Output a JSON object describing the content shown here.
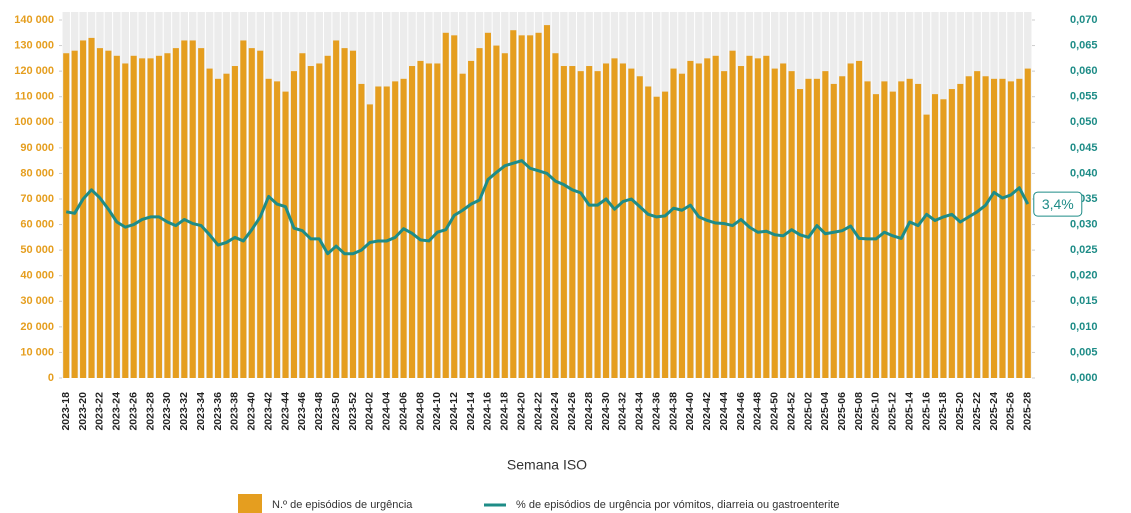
{
  "chart_data": {
    "type": "bar",
    "x_label": "Semana ISO",
    "categories": [
      "2023-18",
      null,
      "2023-20",
      null,
      "2023-22",
      null,
      "2023-24",
      null,
      "2023-26",
      null,
      "2023-28",
      null,
      "2023-30",
      null,
      "2023-32",
      null,
      "2023-34",
      null,
      "2023-36",
      null,
      "2023-38",
      null,
      "2023-40",
      null,
      "2023-42",
      null,
      "2023-44",
      null,
      "2023-46",
      null,
      "2023-48",
      null,
      "2023-50",
      null,
      "2023-52",
      null,
      "2024-02",
      null,
      "2024-04",
      null,
      "2024-06",
      null,
      "2024-08",
      null,
      "2024-10",
      null,
      "2024-12",
      null,
      "2024-14",
      null,
      "2024-16",
      null,
      "2024-18",
      null,
      "2024-20",
      null,
      "2024-22",
      null,
      "2024-24",
      null,
      "2024-26",
      null,
      "2024-28",
      null,
      "2024-30",
      null,
      "2024-32",
      null,
      "2024-34",
      null,
      "2024-36",
      null,
      "2024-38",
      null,
      "2024-40",
      null,
      "2024-42",
      null,
      "2024-44",
      null,
      "2024-46",
      null,
      "2024-48",
      null,
      "2024-50",
      null,
      "2024-52",
      null,
      "2025-02",
      null,
      "2025-04",
      null,
      "2025-06",
      null,
      "2025-08",
      null,
      "2025-10",
      null,
      "2025-12",
      null,
      "2025-14",
      null,
      "2025-16",
      null,
      "2025-18",
      null,
      "2025-20",
      null,
      "2025-22",
      null,
      "2025-24",
      null,
      "2025-26",
      null,
      "2025-28"
    ],
    "series": [
      {
        "name": "N.º de episódios de urgência",
        "color": "#E59E1F",
        "values": [
          127000,
          128000,
          132000,
          133000,
          129000,
          128000,
          126000,
          123000,
          126000,
          125000,
          125000,
          126000,
          127000,
          129000,
          132000,
          132000,
          129000,
          121000,
          117000,
          119000,
          122000,
          132000,
          129000,
          128000,
          117000,
          116000,
          112000,
          120000,
          127000,
          122000,
          123000,
          126000,
          132000,
          129000,
          128000,
          115000,
          107000,
          114000,
          114000,
          116000,
          117000,
          122000,
          124000,
          123000,
          123000,
          135000,
          134000,
          119000,
          124000,
          129000,
          135000,
          130000,
          127000,
          136000,
          134000,
          134000,
          135000,
          138000,
          127000,
          122000,
          122000,
          120000,
          122000,
          120000,
          123000,
          125000,
          123000,
          121000,
          118000,
          114000,
          110000,
          112000,
          121000,
          119000,
          124000,
          123000,
          125000,
          126000,
          120000,
          128000,
          122000,
          126000,
          125000,
          126000,
          121000,
          123000,
          120000,
          113000,
          117000,
          117000,
          120000,
          115000,
          118000,
          123000,
          124000,
          116000,
          111000,
          116000,
          112000,
          116000,
          117000,
          115000,
          103000,
          111000,
          109000,
          113000,
          115000,
          118000,
          120000,
          118000,
          117000,
          117000,
          116000,
          117000,
          121000
        ]
      },
      {
        "name": "% de episódios de urgência por vómitos, diarreia ou gastroenterite",
        "color": "#1E8C87",
        "type": "line",
        "axis": "y2",
        "values": [
          0.0325,
          0.0322,
          0.035,
          0.0368,
          0.0352,
          0.033,
          0.0305,
          0.0295,
          0.03,
          0.031,
          0.0315,
          0.0315,
          0.0305,
          0.0298,
          0.031,
          0.0302,
          0.0298,
          0.028,
          0.026,
          0.0265,
          0.0275,
          0.0268,
          0.029,
          0.0315,
          0.0355,
          0.034,
          0.0335,
          0.0293,
          0.0288,
          0.0272,
          0.0272,
          0.0243,
          0.0258,
          0.0243,
          0.0243,
          0.025,
          0.0265,
          0.0268,
          0.0268,
          0.0275,
          0.0292,
          0.0283,
          0.027,
          0.0268,
          0.0285,
          0.029,
          0.0318,
          0.0328,
          0.034,
          0.0348,
          0.0388,
          0.0402,
          0.0415,
          0.042,
          0.0425,
          0.041,
          0.0405,
          0.04,
          0.0385,
          0.0378,
          0.0368,
          0.0362,
          0.0338,
          0.0338,
          0.035,
          0.033,
          0.0345,
          0.035,
          0.0335,
          0.032,
          0.0315,
          0.0317,
          0.0332,
          0.0328,
          0.0338,
          0.0315,
          0.0308,
          0.0303,
          0.0302,
          0.0298,
          0.031,
          0.0295,
          0.0285,
          0.0287,
          0.028,
          0.0278,
          0.029,
          0.028,
          0.0275,
          0.0298,
          0.0282,
          0.0285,
          0.0288,
          0.0297,
          0.0273,
          0.0272,
          0.0272,
          0.0285,
          0.0278,
          0.0273,
          0.0305,
          0.0298,
          0.032,
          0.0308,
          0.0315,
          0.032,
          0.0305,
          0.0315,
          0.0325,
          0.0338,
          0.0363,
          0.0352,
          0.0358,
          0.0372,
          0.034
        ],
        "value_labels": [
          null,
          null,
          null,
          null,
          null,
          null,
          null,
          null,
          null,
          null,
          null,
          null,
          null,
          null,
          null,
          null,
          null,
          null,
          null,
          null,
          null,
          null,
          null,
          null,
          null,
          null,
          null,
          null,
          null,
          null,
          null,
          null,
          null,
          null,
          null,
          null,
          null,
          null,
          null,
          null,
          null,
          null,
          null,
          null,
          null,
          null,
          null,
          null,
          null,
          null,
          null,
          null,
          null,
          null,
          null,
          null,
          null,
          null,
          null,
          null,
          null,
          null,
          null,
          null,
          null,
          null,
          null,
          null,
          null,
          null,
          null,
          null,
          null,
          null,
          null,
          null,
          null,
          null,
          null,
          null,
          null,
          null,
          null,
          null,
          null,
          null,
          null,
          null,
          null,
          null,
          null,
          null,
          null,
          null,
          null,
          null,
          null,
          null,
          null,
          null,
          null,
          null,
          null,
          null,
          null,
          null,
          null,
          null,
          null,
          null,
          null,
          null,
          null,
          null,
          "3,4%"
        ]
      }
    ],
    "ylim": [
      0,
      140000
    ],
    "yticks": [
      0,
      {
        "value": 10000,
        "label": "10 000"
      },
      {
        "value": 20000,
        "label": "20 000"
      },
      {
        "value": 30000,
        "label": "30 000"
      },
      {
        "value": 40000,
        "label": "40 000"
      },
      {
        "value": 50000,
        "label": "50 000"
      },
      {
        "value": 60000,
        "label": "60 000"
      },
      {
        "value": 70000,
        "label": "70 000"
      },
      {
        "value": 80000,
        "label": "80 000"
      },
      {
        "value": 90000,
        "label": "90 000"
      },
      {
        "value": 100000,
        "label": "100 000"
      },
      {
        "value": 110000,
        "label": "110 000"
      },
      {
        "value": 120000,
        "label": "120 000"
      },
      {
        "value": 130000,
        "label": "130 000"
      },
      {
        "value": 140000,
        "label": "140 000"
      }
    ],
    "y2lim": [
      0,
      0.07
    ],
    "y2ticks": [
      {
        "value": 0,
        "label": "0,000"
      },
      {
        "value": 0.005,
        "label": "0,005"
      },
      {
        "value": 0.01,
        "label": "0,010"
      },
      {
        "value": 0.015,
        "label": "0,015"
      },
      {
        "value": 0.02,
        "label": "0,020"
      },
      {
        "value": 0.025,
        "label": "0,025"
      },
      {
        "value": 0.03,
        "label": "0,030"
      },
      {
        "value": 0.035,
        "label": "0,035"
      },
      {
        "value": 0.04,
        "label": "0,040"
      },
      {
        "value": 0.045,
        "label": "0,045"
      },
      {
        "value": 0.05,
        "label": "0,050"
      },
      {
        "value": 0.055,
        "label": "0,055"
      },
      {
        "value": 0.06,
        "label": "0,060"
      },
      {
        "value": 0.065,
        "label": "0,065"
      },
      {
        "value": 0.07,
        "label": "0,070"
      }
    ]
  }
}
